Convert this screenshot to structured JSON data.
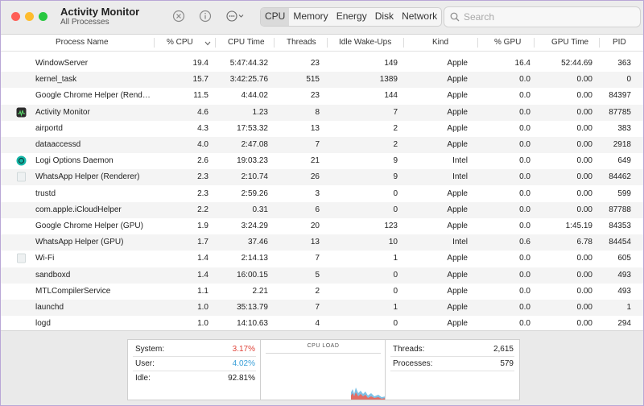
{
  "window": {
    "title": "Activity Monitor",
    "subtitle": "All Processes",
    "traffic_lights": {
      "close": "#ff5f57",
      "minimize": "#febc2e",
      "zoom": "#28c840"
    }
  },
  "toolbar": {
    "stop_icon": "x-circle-icon",
    "info_icon": "info-icon",
    "actions_icon": "ellipsis-circle-icon",
    "tabs": [
      {
        "label": "CPU",
        "active": true
      },
      {
        "label": "Memory",
        "active": false
      },
      {
        "label": "Energy",
        "active": false
      },
      {
        "label": "Disk",
        "active": false
      },
      {
        "label": "Network",
        "active": false
      }
    ],
    "search_placeholder": "Search"
  },
  "columns": {
    "process_name": "Process Name",
    "cpu": "% CPU",
    "cpu_time": "CPU Time",
    "threads": "Threads",
    "idle_wakeups": "Idle Wake-Ups",
    "kind": "Kind",
    "gpu": "% GPU",
    "gpu_time": "GPU Time",
    "pid": "PID"
  },
  "processes": [
    {
      "name": "WindowServer",
      "cpu": "19.4",
      "cpu_time": "5:47:44.32",
      "threads": "23",
      "idle": "149",
      "kind": "Apple",
      "gpu": "16.4",
      "gpu_time": "52:44.69",
      "pid": "363",
      "icon": ""
    },
    {
      "name": "kernel_task",
      "cpu": "15.7",
      "cpu_time": "3:42:25.76",
      "threads": "515",
      "idle": "1389",
      "kind": "Apple",
      "gpu": "0.0",
      "gpu_time": "0.00",
      "pid": "0",
      "icon": ""
    },
    {
      "name": "Google Chrome Helper (Rend…",
      "cpu": "11.5",
      "cpu_time": "4:44.02",
      "threads": "23",
      "idle": "144",
      "kind": "Apple",
      "gpu": "0.0",
      "gpu_time": "0.00",
      "pid": "84397",
      "icon": ""
    },
    {
      "name": "Activity Monitor",
      "cpu": "4.6",
      "cpu_time": "1.23",
      "threads": "8",
      "idle": "7",
      "kind": "Apple",
      "gpu": "0.0",
      "gpu_time": "0.00",
      "pid": "87785",
      "icon": "activity-monitor-icon"
    },
    {
      "name": "airportd",
      "cpu": "4.3",
      "cpu_time": "17:53.32",
      "threads": "13",
      "idle": "2",
      "kind": "Apple",
      "gpu": "0.0",
      "gpu_time": "0.00",
      "pid": "383",
      "icon": ""
    },
    {
      "name": "dataaccessd",
      "cpu": "4.0",
      "cpu_time": "2:47.08",
      "threads": "7",
      "idle": "2",
      "kind": "Apple",
      "gpu": "0.0",
      "gpu_time": "0.00",
      "pid": "2918",
      "icon": ""
    },
    {
      "name": "Logi Options Daemon",
      "cpu": "2.6",
      "cpu_time": "19:03.23",
      "threads": "21",
      "idle": "9",
      "kind": "Intel",
      "gpu": "0.0",
      "gpu_time": "0.00",
      "pid": "649",
      "icon": "logi-icon"
    },
    {
      "name": "WhatsApp Helper (Renderer)",
      "cpu": "2.3",
      "cpu_time": "2:10.74",
      "threads": "26",
      "idle": "9",
      "kind": "Intel",
      "gpu": "0.0",
      "gpu_time": "0.00",
      "pid": "84462",
      "icon": "generic-app-icon"
    },
    {
      "name": "trustd",
      "cpu": "2.3",
      "cpu_time": "2:59.26",
      "threads": "3",
      "idle": "0",
      "kind": "Apple",
      "gpu": "0.0",
      "gpu_time": "0.00",
      "pid": "599",
      "icon": ""
    },
    {
      "name": "com.apple.iCloudHelper",
      "cpu": "2.2",
      "cpu_time": "0.31",
      "threads": "6",
      "idle": "0",
      "kind": "Apple",
      "gpu": "0.0",
      "gpu_time": "0.00",
      "pid": "87788",
      "icon": ""
    },
    {
      "name": "Google Chrome Helper (GPU)",
      "cpu": "1.9",
      "cpu_time": "3:24.29",
      "threads": "20",
      "idle": "123",
      "kind": "Apple",
      "gpu": "0.0",
      "gpu_time": "1:45.19",
      "pid": "84353",
      "icon": ""
    },
    {
      "name": "WhatsApp Helper (GPU)",
      "cpu": "1.7",
      "cpu_time": "37.46",
      "threads": "13",
      "idle": "10",
      "kind": "Intel",
      "gpu": "0.6",
      "gpu_time": "6.78",
      "pid": "84454",
      "icon": ""
    },
    {
      "name": "Wi-Fi",
      "cpu": "1.4",
      "cpu_time": "2:14.13",
      "threads": "7",
      "idle": "1",
      "kind": "Apple",
      "gpu": "0.0",
      "gpu_time": "0.00",
      "pid": "605",
      "icon": "generic-app-icon"
    },
    {
      "name": "sandboxd",
      "cpu": "1.4",
      "cpu_time": "16:00.15",
      "threads": "5",
      "idle": "0",
      "kind": "Apple",
      "gpu": "0.0",
      "gpu_time": "0.00",
      "pid": "493",
      "icon": ""
    },
    {
      "name": "MTLCompilerService",
      "cpu": "1.1",
      "cpu_time": "2.21",
      "threads": "2",
      "idle": "0",
      "kind": "Apple",
      "gpu": "0.0",
      "gpu_time": "0.00",
      "pid": "493",
      "icon": ""
    },
    {
      "name": "launchd",
      "cpu": "1.0",
      "cpu_time": "35:13.79",
      "threads": "7",
      "idle": "1",
      "kind": "Apple",
      "gpu": "0.0",
      "gpu_time": "0.00",
      "pid": "1",
      "icon": ""
    },
    {
      "name": "logd",
      "cpu": "1.0",
      "cpu_time": "14:10.63",
      "threads": "4",
      "idle": "0",
      "kind": "Apple",
      "gpu": "0.0",
      "gpu_time": "0.00",
      "pid": "294",
      "icon": ""
    }
  ],
  "summary": {
    "system_label": "System:",
    "system_value": "3.17%",
    "system_color": "#e0443a",
    "user_label": "User:",
    "user_value": "4.02%",
    "user_color": "#3a9fd8",
    "idle_label": "Idle:",
    "idle_value": "92.81%",
    "cpu_load_title": "CPU LOAD",
    "threads_label": "Threads:",
    "threads_value": "2,615",
    "processes_label": "Processes:",
    "processes_value": "579"
  }
}
